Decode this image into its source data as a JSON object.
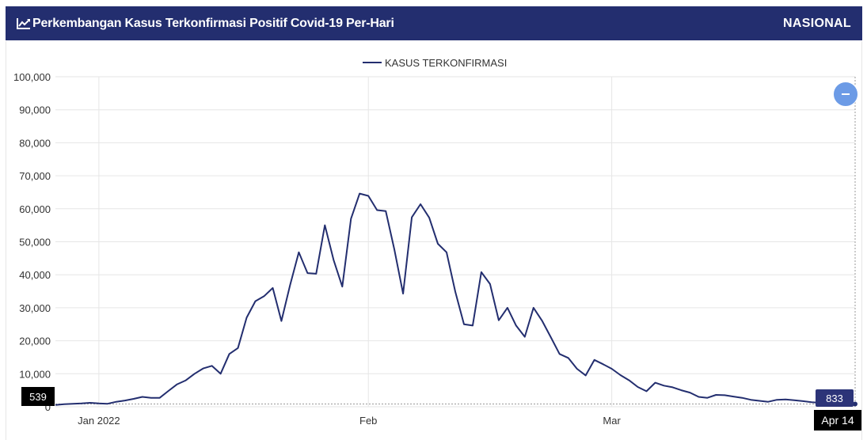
{
  "header": {
    "title": "Perkembangan Kasus Terkonfirmasi Positif Covid-19 Per-Hari",
    "scope": "NASIONAL",
    "icon": "line-chart-icon"
  },
  "colors": {
    "header_bg": "#232e6f",
    "series": "#232e6f",
    "zoom_button": "#6c9be6",
    "end_badge": "#2c3478"
  },
  "tooltip": {
    "start_value": "539",
    "end_value": "833",
    "end_date": "Apr 14"
  },
  "chart_data": {
    "type": "line",
    "title": "",
    "xlabel": "",
    "ylabel": "",
    "legend": "top-center",
    "grid": true,
    "ylim": [
      0,
      100000
    ],
    "yticks": [
      0,
      10000,
      20000,
      30000,
      40000,
      50000,
      60000,
      70000,
      80000,
      90000,
      100000
    ],
    "ytick_labels": [
      "0",
      "10,000",
      "20,000",
      "30,000",
      "40,000",
      "50,000",
      "60,000",
      "70,000",
      "80,000",
      "90,000",
      "100,000"
    ],
    "xticks": [
      {
        "label": "Jan 2022",
        "index": 5
      },
      {
        "label": "Feb",
        "index": 36
      },
      {
        "label": "Mar",
        "index": 64
      },
      {
        "label": "Apr 14",
        "index": 108
      }
    ],
    "series": [
      {
        "name": "KASUS TERKONFIRMASI",
        "values": [
          539,
          800,
          900,
          1000,
          1200,
          1000,
          900,
          1500,
          1900,
          2400,
          3000,
          2700,
          2700,
          4800,
          6800,
          8000,
          10000,
          11600,
          12400,
          10000,
          16000,
          17800,
          27000,
          32000,
          33500,
          36000,
          26000,
          36900,
          46800,
          40500,
          40300,
          55000,
          44500,
          36400,
          57000,
          64600,
          63900,
          59600,
          59300,
          47500,
          34300,
          57400,
          61400,
          57300,
          49400,
          46800,
          34900,
          25000,
          24600,
          40800,
          37200,
          26200,
          30000,
          24600,
          21200,
          30000,
          26000,
          21000,
          16000,
          14800,
          11500,
          9500,
          14200,
          12900,
          11500,
          9600,
          8000,
          6000,
          4700,
          7300,
          6400,
          5900,
          5000,
          4300,
          3000,
          2700,
          3600,
          3500,
          3100,
          2700,
          2100,
          1800,
          1500,
          2100,
          2200,
          2000,
          1700,
          1400,
          1200,
          1300,
          1000,
          900,
          833
        ]
      }
    ]
  }
}
